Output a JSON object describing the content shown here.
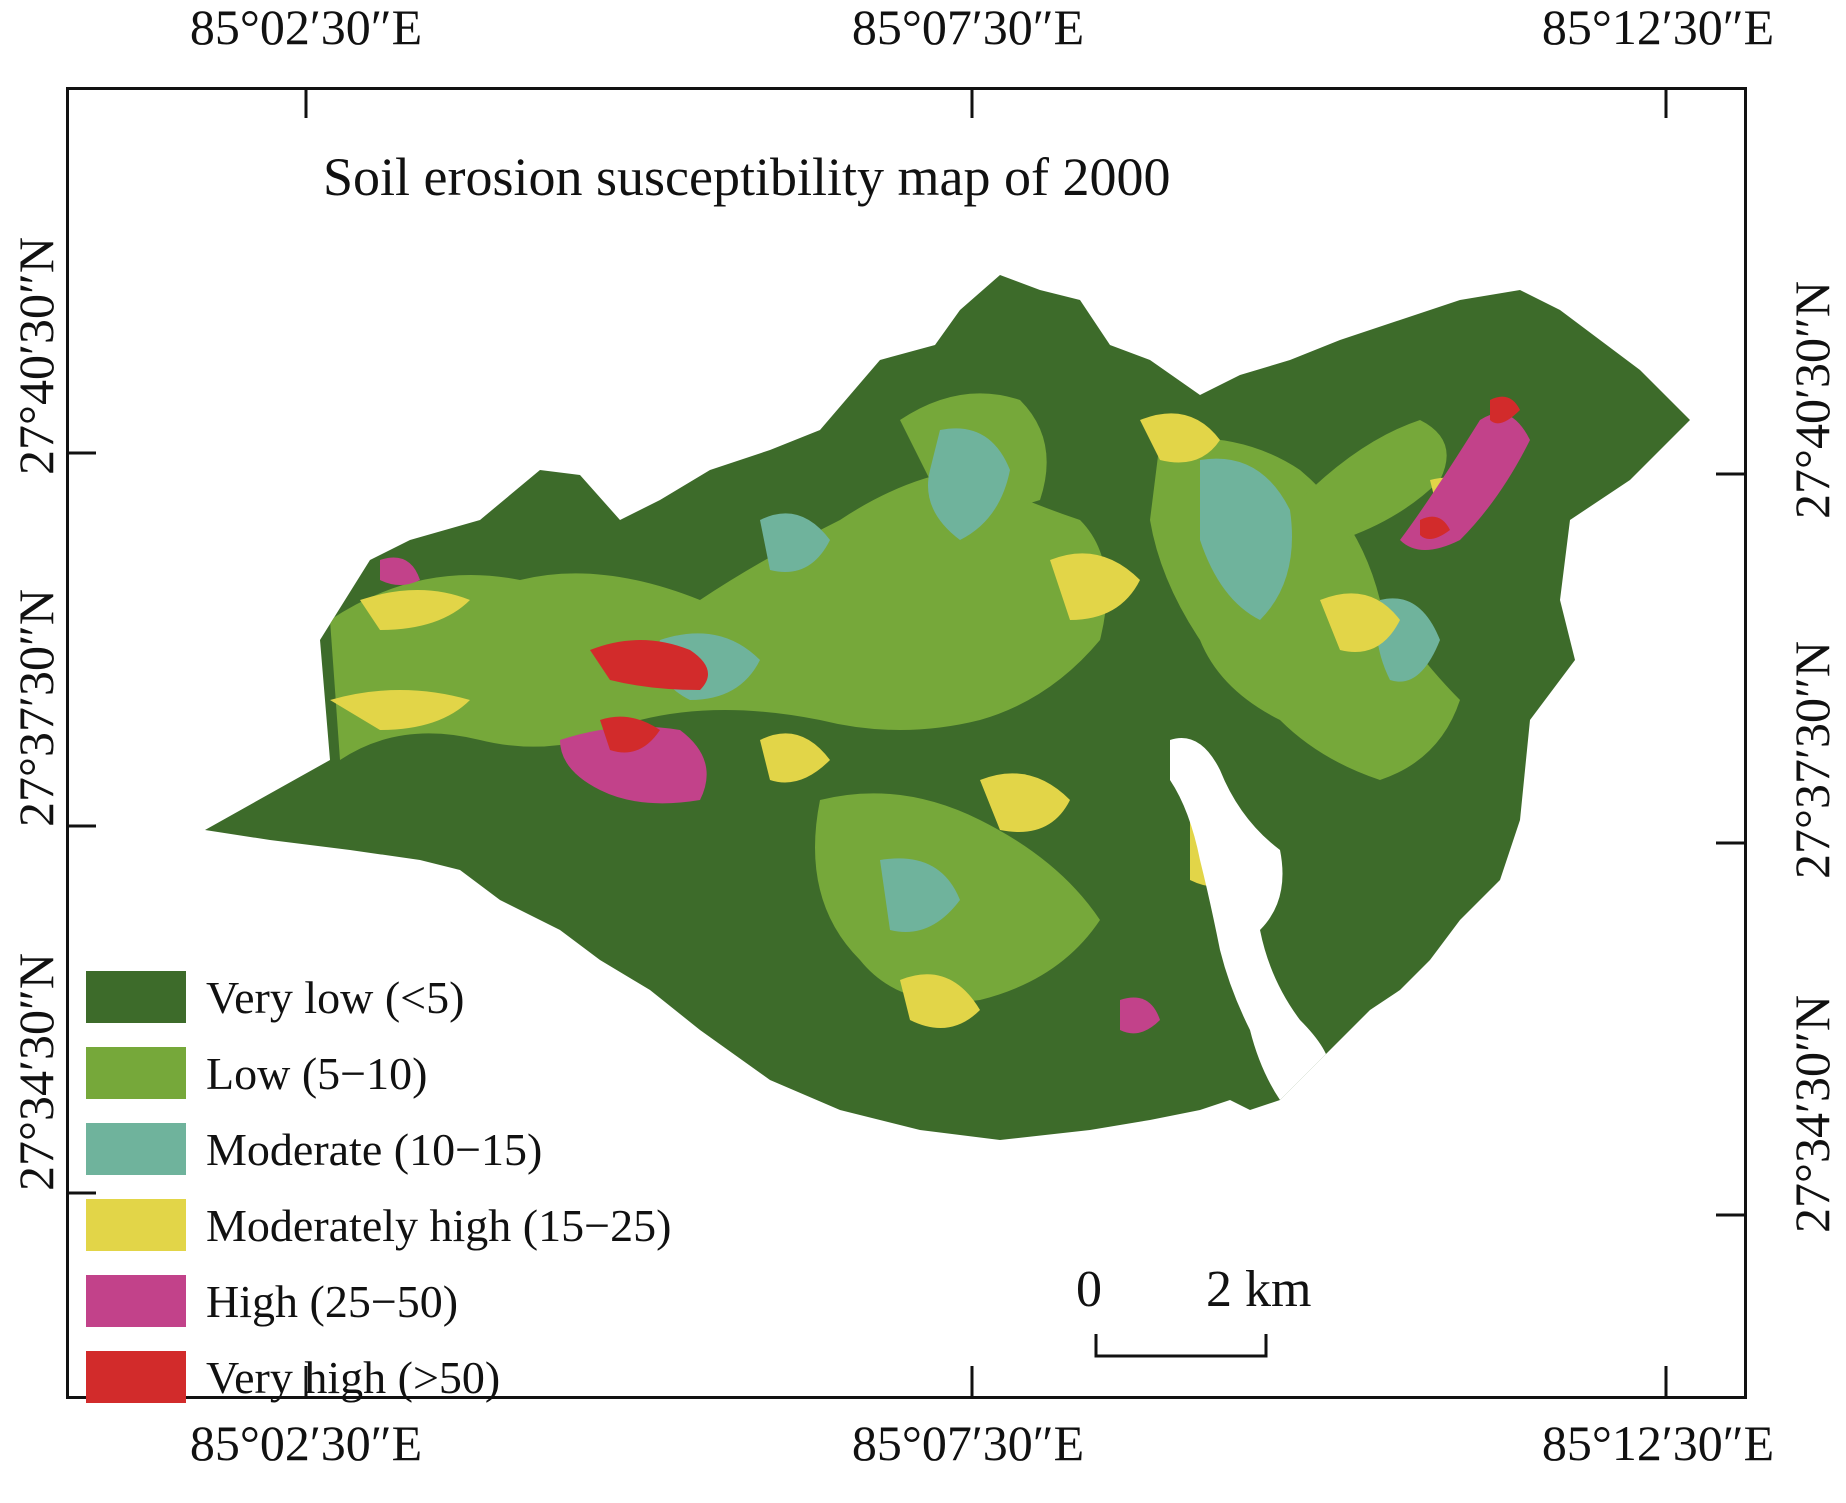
{
  "map": {
    "title": "Soil erosion susceptibility map of 2000",
    "top_axis": [
      "85°02′30″E",
      "85°07′30″E",
      "85°12′30″E"
    ],
    "bottom_axis": [
      "85°02′30″E",
      "85°07′30″E",
      "85°12′30″E"
    ],
    "left_axis": [
      "27°40′30″N",
      "27°37′30″N",
      "27°34′30″N"
    ],
    "right_axis": [
      "27°40′30″N",
      "27°37′30″N",
      "27°34′30″N"
    ],
    "legend": [
      {
        "label": "Very low (<5)",
        "color": "#3d6b2a"
      },
      {
        "label": "Low (5−10)",
        "color": "#76a83a"
      },
      {
        "label": "Moderate (10−15)",
        "color": "#6fb39c"
      },
      {
        "label": "Moderately high (15−25)",
        "color": "#e2d548"
      },
      {
        "label": "High (25−50)",
        "color": "#c2428a"
      },
      {
        "label": "Very high (>50)",
        "color": "#d22b2b"
      }
    ],
    "scale": {
      "start": "0",
      "end": "2 km"
    }
  }
}
